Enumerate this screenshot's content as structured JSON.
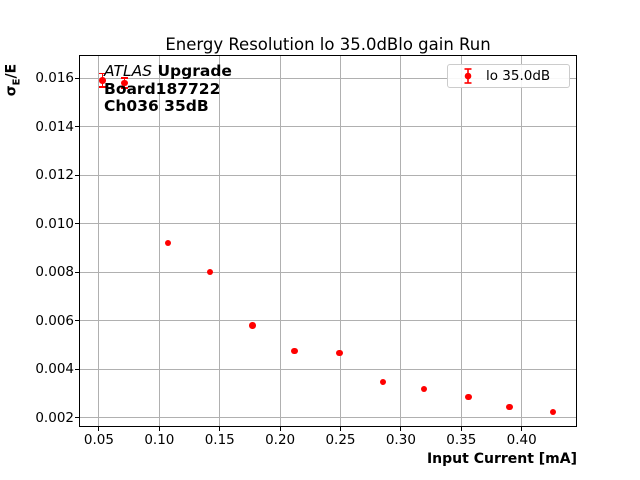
{
  "window": {
    "background": "#ffffff"
  },
  "chart_data": {
    "type": "scatter",
    "title": "Energy Resolution lo 35.0dBlo gain Run",
    "xlabel": "Input Current [mA]",
    "ylabel": "σE/E",
    "ylabel_parts": {
      "sigma": "σ",
      "sub": "E",
      "rest": "/E"
    },
    "xlim": [
      0.0343,
      0.445
    ],
    "ylim": [
      0.00165,
      0.01691
    ],
    "xticks": [
      0.05,
      0.1,
      0.15,
      0.2,
      0.25,
      0.3,
      0.35,
      0.4
    ],
    "xtick_labels": [
      "0.05",
      "0.10",
      "0.15",
      "0.20",
      "0.25",
      "0.30",
      "0.35",
      "0.40"
    ],
    "yticks": [
      0.002,
      0.004,
      0.006,
      0.008,
      0.01,
      0.012,
      0.014,
      0.016
    ],
    "ytick_labels": [
      "0.002",
      "0.004",
      "0.006",
      "0.008",
      "0.010",
      "0.012",
      "0.014",
      "0.016"
    ],
    "grid": true,
    "legend_position": "upper right",
    "series": [
      {
        "name": "lo 35.0dB",
        "color": "#ff0000",
        "marker": "circle-with-errorbar",
        "points": [
          {
            "x": 0.053,
            "y": 0.0159,
            "yerr": 0.00028
          },
          {
            "x": 0.071,
            "y": 0.0158,
            "yerr": 0.0002
          },
          {
            "x": 0.107,
            "y": 0.0092,
            "yerr": 5e-05
          },
          {
            "x": 0.142,
            "y": 0.008,
            "yerr": 4e-05
          },
          {
            "x": 0.177,
            "y": 0.0058,
            "yerr": 3e-05
          },
          {
            "x": 0.212,
            "y": 0.00474,
            "yerr": 2e-05
          },
          {
            "x": 0.249,
            "y": 0.00466,
            "yerr": 2e-05
          },
          {
            "x": 0.285,
            "y": 0.00346,
            "yerr": 2e-05
          },
          {
            "x": 0.319,
            "y": 0.00318,
            "yerr": 1e-05
          },
          {
            "x": 0.356,
            "y": 0.00284,
            "yerr": 1e-05
          },
          {
            "x": 0.39,
            "y": 0.00243,
            "yerr": 1e-05
          },
          {
            "x": 0.426,
            "y": 0.00222,
            "yerr": 1e-05
          }
        ]
      }
    ]
  },
  "annotation": {
    "line1_italic": "ATLAS",
    "line1_bold": "Upgrade",
    "line2": "Board187722",
    "line3": "Ch036 35dB"
  },
  "legend": {
    "label": "lo 35.0dB"
  },
  "colors": {
    "marker": "#ff0000",
    "grid": "#b0b0b0",
    "spine": "#000000",
    "legend_border": "#cccccc",
    "text": "#000000"
  }
}
